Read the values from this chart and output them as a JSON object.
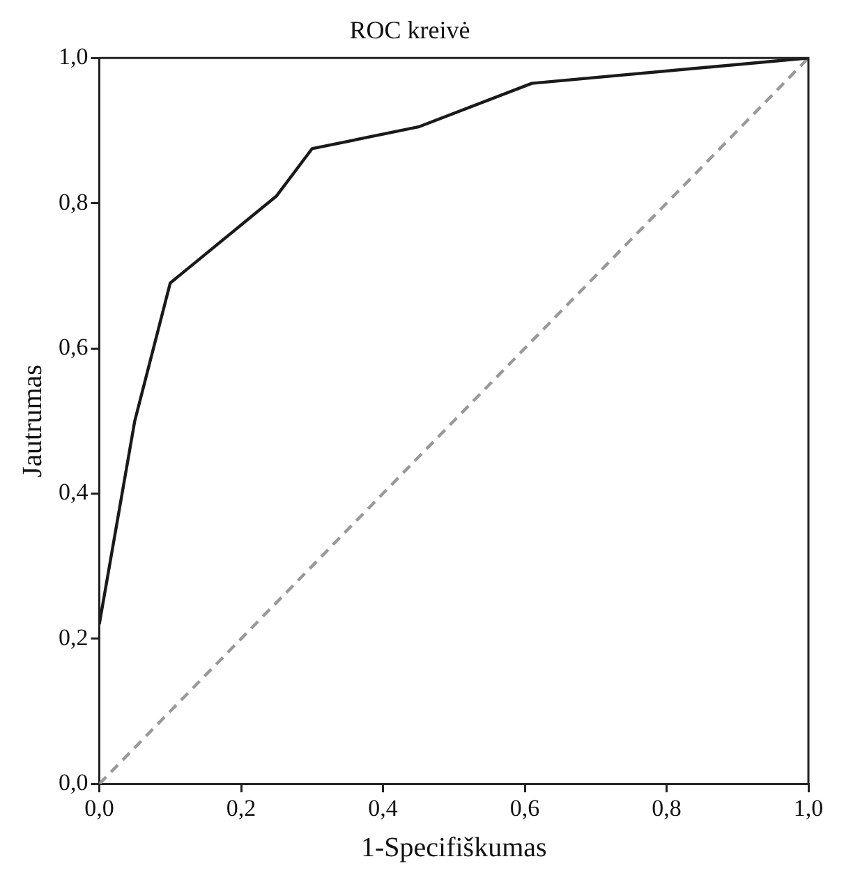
{
  "chart_data": {
    "type": "line",
    "title": "ROC kreivė",
    "xlabel": "1-Specifiškumas",
    "ylabel": "Jautrumas",
    "xlim": [
      0,
      1
    ],
    "ylim": [
      0,
      1
    ],
    "xticks": [
      {
        "value": 0,
        "label": "0,0"
      },
      {
        "value": 0.2,
        "label": "0,2"
      },
      {
        "value": 0.4,
        "label": "0,4"
      },
      {
        "value": 0.6,
        "label": "0,6"
      },
      {
        "value": 0.8,
        "label": "0,8"
      },
      {
        "value": 1,
        "label": "1,0"
      }
    ],
    "yticks": [
      {
        "value": 0,
        "label": "0,0"
      },
      {
        "value": 0.2,
        "label": "0,2"
      },
      {
        "value": 0.4,
        "label": "0,4"
      },
      {
        "value": 0.6,
        "label": "0,6"
      },
      {
        "value": 0.8,
        "label": "0,8"
      },
      {
        "value": 1,
        "label": "1,0"
      }
    ],
    "grid": false,
    "legend": false,
    "marker": "none",
    "series": [
      {
        "type": "line",
        "color": "#1a1a1a",
        "line_style": "solid",
        "x": [
          0,
          0.05,
          0.1,
          0.25,
          0.3,
          0.45,
          0.61,
          1
        ],
        "values": [
          0.22,
          0.5,
          0.69,
          0.81,
          0.875,
          0.905,
          0.965,
          1
        ]
      },
      {
        "type": "line",
        "color": "#999999",
        "line_style": "dashed",
        "x": [
          0,
          1
        ],
        "values": [
          0,
          1
        ]
      }
    ]
  }
}
